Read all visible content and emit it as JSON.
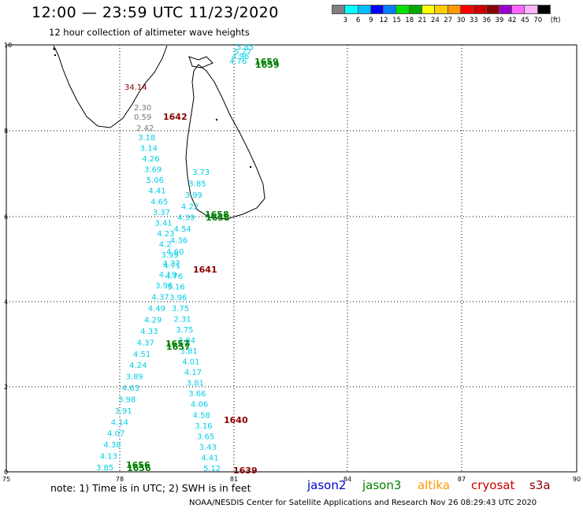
{
  "header": {
    "title": "12:00 — 23:59 UTC 11/23/2020",
    "subtitle": "12 hour collection of altimeter wave heights"
  },
  "colorbar": {
    "colors": [
      "#808080",
      "#00ffff",
      "#00bfff",
      "#0000ff",
      "#0080ff",
      "#00e000",
      "#00a800",
      "#ffff00",
      "#ffcc00",
      "#ff9900",
      "#ff0000",
      "#cc0000",
      "#8b0000",
      "#9900cc",
      "#ff66ff",
      "#ffb3ff",
      "#000000"
    ],
    "labels": [
      "3",
      "6",
      "9",
      "12",
      "15",
      "18",
      "21",
      "24",
      "27",
      "30",
      "33",
      "36",
      "39",
      "42",
      "45",
      "70",
      "(ft)"
    ]
  },
  "axes": {
    "x_ticks": [
      "75",
      "78",
      "81",
      "84",
      "87",
      "90"
    ],
    "y_ticks": [
      "10",
      "8",
      "6",
      "4",
      "2",
      "0"
    ]
  },
  "track_labels": [
    {
      "text": "1659",
      "color": "#008000"
    },
    {
      "text": "1642",
      "color": "#8b0000"
    },
    {
      "text": "1658",
      "color": "#008000"
    },
    {
      "text": "1641",
      "color": "#8b0000"
    },
    {
      "text": "1657",
      "color": "#008000"
    },
    {
      "text": "1640",
      "color": "#8b0000"
    },
    {
      "text": "1656",
      "color": "#008000"
    },
    {
      "text": "1639",
      "color": "#8b0000"
    }
  ],
  "readings_right": [
    "3.18",
    "3.14",
    "4.26",
    "3.69",
    "5.06",
    "4.41",
    "4.65",
    "3.37",
    "3.41",
    "4.23",
    "4.2",
    "3.99",
    "4.71",
    "4.76",
    "5.16",
    "3.96",
    "3.75",
    "2.31",
    "3.75",
    "3.84",
    "3.81",
    "4.01",
    "4.17",
    "3.81",
    "3.66",
    "4.06",
    "4.58",
    "3.16",
    "3.65",
    "3.43",
    "4.41",
    "5.12"
  ],
  "readings_left": [
    "3.73",
    "3.85",
    "3.99",
    "4.22",
    "4.39",
    "4.54",
    "4.36",
    "4.60",
    "4.22",
    "4.19",
    "3.96",
    "4.37",
    "4.49",
    "4.29",
    "4.33",
    "4.37",
    "4.51",
    "4.24",
    "3.89",
    "4.63",
    "3.98",
    "3.91",
    "4.14",
    "4.07",
    "4.38",
    "4.13",
    "3.85"
  ],
  "readings_top": [
    "5.85",
    "5.27",
    "4.96",
    "4.76"
  ],
  "readings_gray": [
    "34.14",
    "2.30",
    "0.59",
    "2.42"
  ],
  "footer": {
    "note": "note:  1)  Time is in UTC;  2)  SWH is in feet",
    "legend": [
      {
        "label": "jason2",
        "color": "#0000cc"
      },
      {
        "label": "jason3",
        "color": "#008000"
      },
      {
        "label": "altika",
        "color": "#ff9900"
      },
      {
        "label": "cryosat",
        "color": "#cc0000"
      },
      {
        "label": "s3a",
        "color": "#8b0000"
      }
    ],
    "credit": "NOAA/NESDIS Center for Satellite Applications and Research    Nov 26 08:29:43 UTC 2020"
  }
}
